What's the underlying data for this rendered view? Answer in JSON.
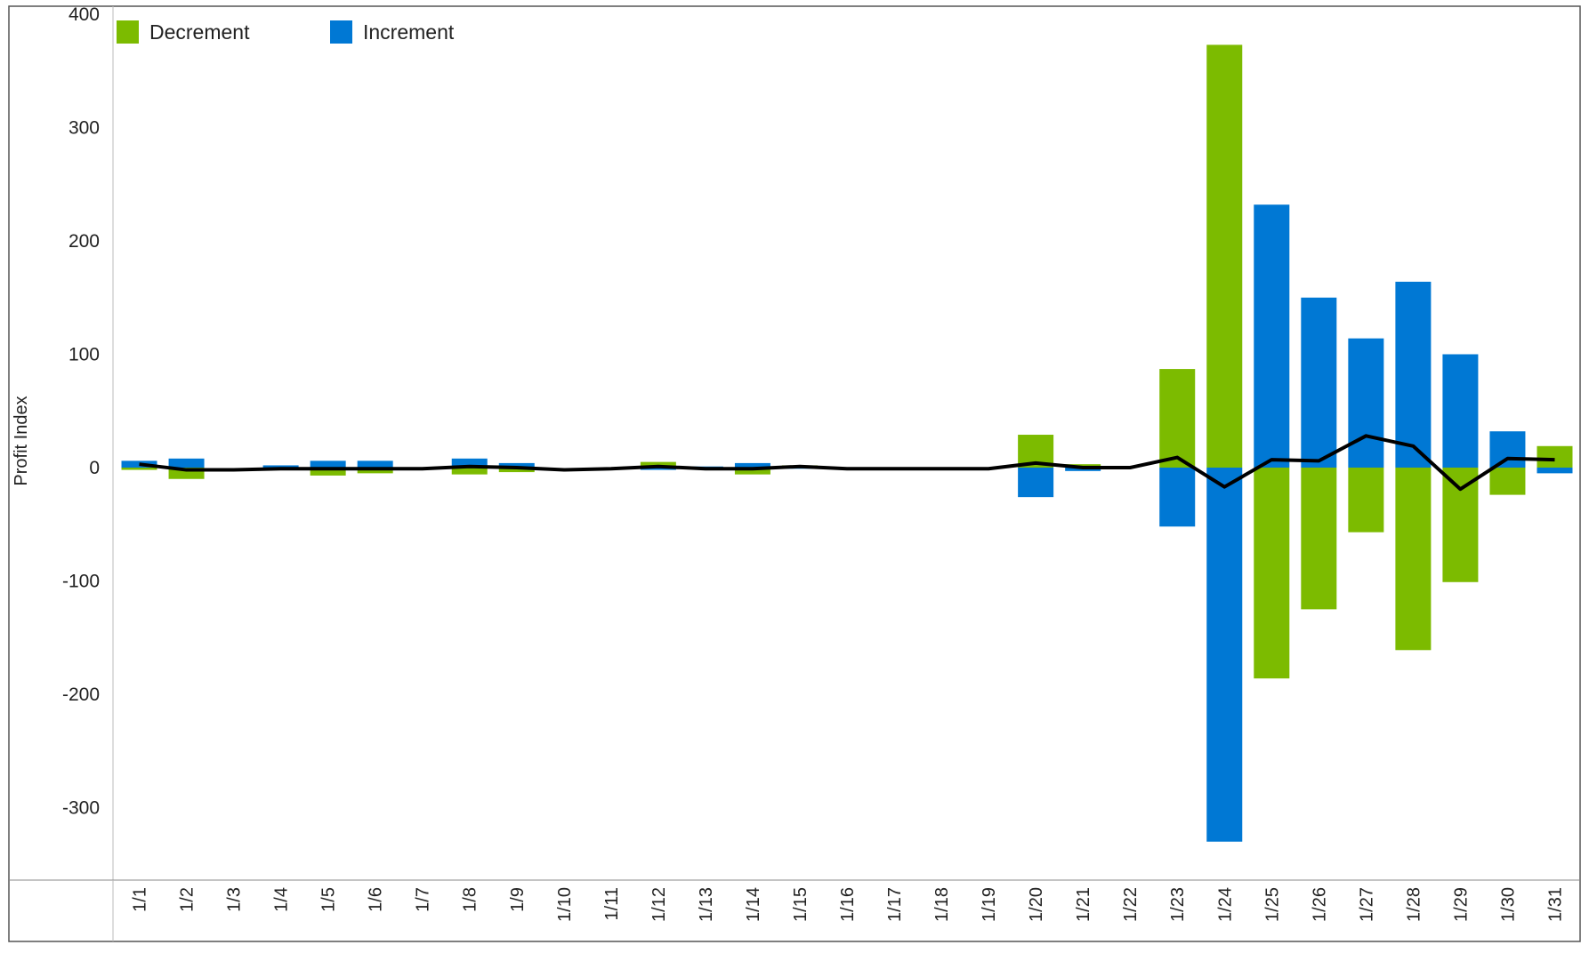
{
  "chart_data": {
    "type": "bar",
    "title": "",
    "xlabel": "",
    "ylabel": "Profit Index",
    "ylim": [
      -360,
      400
    ],
    "yticks": [
      400,
      300,
      200,
      100,
      0,
      -100,
      -200,
      -300
    ],
    "grid": false,
    "legend_position": "top-left",
    "categories": [
      "1/1",
      "1/2",
      "1/3",
      "1/4",
      "1/5",
      "1/6",
      "1/7",
      "1/8",
      "1/9",
      "1/10",
      "1/11",
      "1/12",
      "1/13",
      "1/14",
      "1/15",
      "1/16",
      "1/17",
      "1/18",
      "1/19",
      "1/20",
      "1/21",
      "1/22",
      "1/23",
      "1/24",
      "1/25",
      "1/26",
      "1/27",
      "1/28",
      "1/29",
      "1/30",
      "1/31"
    ],
    "series": [
      {
        "name": "Decrement",
        "color": "#7cbb00",
        "values": [
          -2,
          -10,
          0,
          0,
          -7,
          -5,
          0,
          -6,
          -4,
          0,
          0,
          5,
          0,
          -6,
          2,
          0,
          0,
          0,
          0,
          29,
          3,
          0,
          87,
          373,
          -186,
          -125,
          -57,
          -161,
          -101,
          -24,
          19
        ]
      },
      {
        "name": "Increment",
        "color": "#0078d4",
        "values": [
          6,
          8,
          0,
          2,
          6,
          6,
          0,
          8,
          4,
          0,
          0,
          -2,
          1,
          4,
          -1,
          0,
          0,
          0,
          0,
          -26,
          -3,
          0,
          -52,
          -330,
          232,
          150,
          114,
          164,
          100,
          32,
          -5
        ]
      },
      {
        "name": "",
        "type": "line",
        "color": "#000000",
        "values": [
          3,
          -2,
          -2,
          -1,
          -1,
          -1,
          -1,
          1,
          0,
          -2,
          -1,
          1,
          -1,
          -1,
          1,
          -1,
          -1,
          -1,
          -1,
          4,
          0,
          0,
          9,
          -17,
          7,
          6,
          28,
          19,
          -19,
          8,
          7
        ]
      }
    ]
  }
}
